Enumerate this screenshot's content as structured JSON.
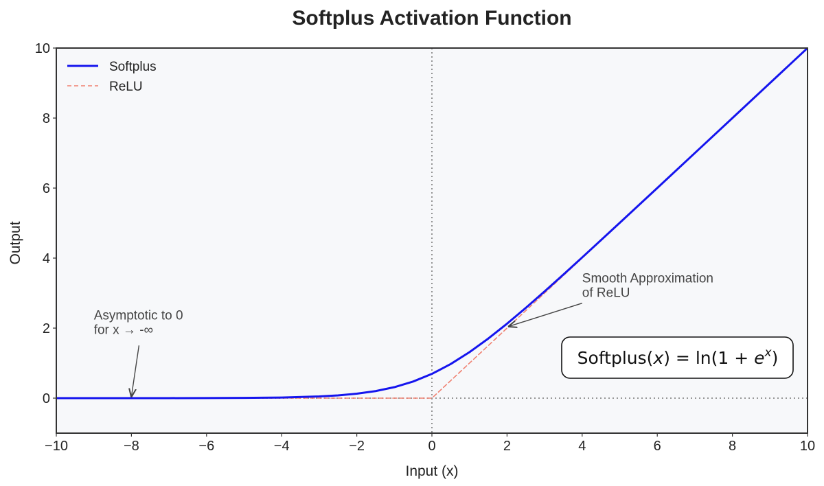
{
  "chart_data": {
    "type": "line",
    "title": "Softplus Activation Function",
    "xlabel": "Input (x)",
    "ylabel": "Output",
    "xlim": [
      -10,
      10
    ],
    "ylim": [
      -1,
      10
    ],
    "xticks": [
      -10,
      -8,
      -6,
      -4,
      -2,
      0,
      2,
      4,
      6,
      8,
      10
    ],
    "yticks": [
      0,
      2,
      4,
      6,
      8,
      10
    ],
    "xtick_labels": [
      "−10",
      "−8",
      "−6",
      "−4",
      "−2",
      "0",
      "2",
      "4",
      "6",
      "8",
      "10"
    ],
    "ytick_labels": [
      "0",
      "2",
      "4",
      "6",
      "8",
      "10"
    ],
    "grid": false,
    "legend_position": "top-left",
    "reference_lines": {
      "x": 0,
      "y": 0,
      "style": "dotted",
      "color": "#888888"
    },
    "series": [
      {
        "name": "Softplus",
        "color": "#1515ee",
        "style": "solid",
        "x": [
          -10,
          -9,
          -8,
          -7,
          -6,
          -5,
          -4,
          -3,
          -2.5,
          -2,
          -1.5,
          -1,
          -0.5,
          0,
          0.5,
          1,
          1.5,
          2,
          2.5,
          3,
          3.5,
          4,
          5,
          6,
          7,
          8,
          9,
          10
        ],
        "y": [
          5e-05,
          0.00012,
          0.00034,
          0.00091,
          0.00248,
          0.00672,
          0.01815,
          0.04859,
          0.07889,
          0.12693,
          0.20141,
          0.31326,
          0.47408,
          0.69315,
          0.97408,
          1.31326,
          1.70141,
          2.12693,
          2.57889,
          3.04859,
          3.52975,
          4.01815,
          5.00672,
          6.00248,
          7.00091,
          8.00034,
          9.00012,
          10.00005
        ]
      },
      {
        "name": "ReLU",
        "color": "#f08070",
        "style": "dashed",
        "x": [
          -10,
          0,
          10
        ],
        "y": [
          0,
          0,
          10
        ]
      }
    ],
    "annotations": [
      {
        "lines": [
          "Asymptotic to 0",
          "for x → -∞"
        ],
        "text_pos": [
          -9,
          2.25
        ],
        "arrow_to": [
          -8,
          0.05
        ]
      },
      {
        "lines": [
          "Smooth Approximation",
          "of ReLU"
        ],
        "text_pos": [
          4,
          3.3
        ],
        "arrow_to": [
          2.05,
          2.05
        ]
      }
    ],
    "formula_box": {
      "prefix": "Softplus(",
      "var": "x",
      "middle": ") = ln(1 + ",
      "base": "e",
      "exponent": "x",
      "suffix": ")"
    }
  }
}
